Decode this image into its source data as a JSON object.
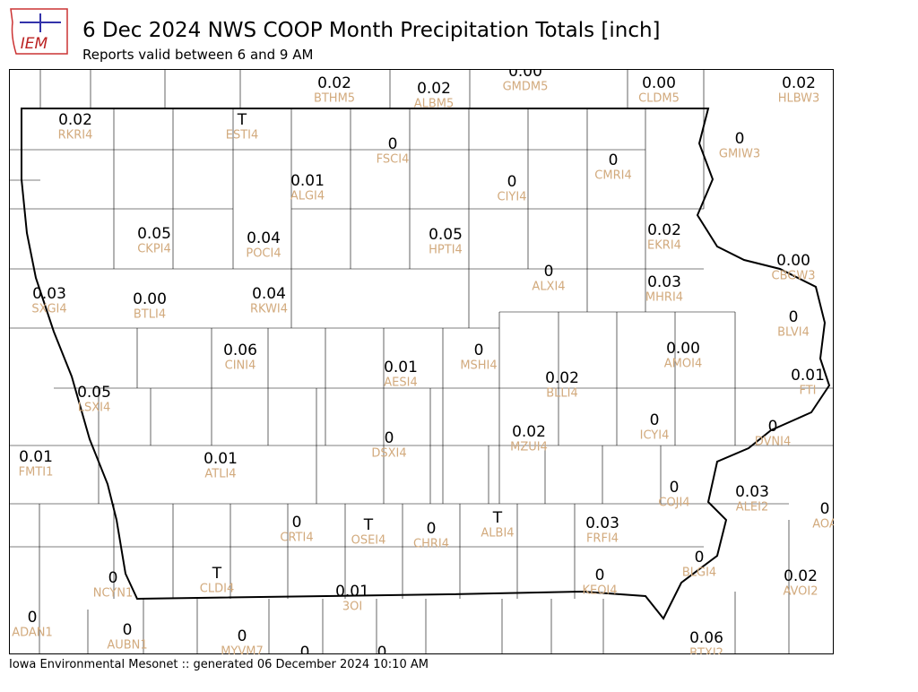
{
  "logo": "IEM",
  "header": {
    "title": "6 Dec 2024 NWS COOP Month Precipitation Totals [inch]",
    "subtitle": "Reports valid between 6 and 9 AM"
  },
  "footer": "Iowa Environmental Mesonet :: generated 06 December 2024 10:10 AM",
  "stations": [
    {
      "value": "0.02",
      "id": "BTHM5"
    },
    {
      "value": "0.02",
      "id": "ALBM5"
    },
    {
      "value": "0.00",
      "id": "GMDM5"
    },
    {
      "value": "0.00",
      "id": "CLDM5"
    },
    {
      "value": "0.02",
      "id": "HLBW3"
    },
    {
      "value": "0.02",
      "id": "RKRI4"
    },
    {
      "value": "T",
      "id": "ESTI4"
    },
    {
      "value": "0",
      "id": "FSCI4"
    },
    {
      "value": "0",
      "id": "GMIW3"
    },
    {
      "value": "0",
      "id": "CMRI4"
    },
    {
      "value": "0.01",
      "id": "ALGI4"
    },
    {
      "value": "0",
      "id": "CIYI4"
    },
    {
      "value": "0.05",
      "id": "CKPI4"
    },
    {
      "value": "0.04",
      "id": "POCI4"
    },
    {
      "value": "0.05",
      "id": "HPTI4"
    },
    {
      "value": "0.02",
      "id": "EKRI4"
    },
    {
      "value": "0.00",
      "id": "CBGW3"
    },
    {
      "value": "0",
      "id": "ALXI4"
    },
    {
      "value": "0.03",
      "id": "MHRI4"
    },
    {
      "value": "0.03",
      "id": "SXGI4"
    },
    {
      "value": "0.00",
      "id": "BTLI4"
    },
    {
      "value": "0.04",
      "id": "RKWI4"
    },
    {
      "value": "0",
      "id": "BLVI4"
    },
    {
      "value": "0.06",
      "id": "CINI4"
    },
    {
      "value": "0",
      "id": "MSHI4"
    },
    {
      "value": "0.00",
      "id": "AMOI4"
    },
    {
      "value": "0.01",
      "id": "AESI4"
    },
    {
      "value": "0.01",
      "id": "FTI"
    },
    {
      "value": "0.02",
      "id": "BLLI4"
    },
    {
      "value": "0.05",
      "id": "LSXI4"
    },
    {
      "value": "0",
      "id": "ICYI4"
    },
    {
      "value": "0",
      "id": "DVNI4"
    },
    {
      "value": "0.02",
      "id": "MZUI4"
    },
    {
      "value": "0",
      "id": "DSXI4"
    },
    {
      "value": "0.01",
      "id": "FMTI1"
    },
    {
      "value": "0.01",
      "id": "ATLI4"
    },
    {
      "value": "0",
      "id": "COJI4"
    },
    {
      "value": "0.03",
      "id": "ALEI2"
    },
    {
      "value": "0",
      "id": "AOA"
    },
    {
      "value": "0",
      "id": "CRTI4"
    },
    {
      "value": "T",
      "id": "OSEI4"
    },
    {
      "value": "0",
      "id": "CHRI4"
    },
    {
      "value": "T",
      "id": "ALBI4"
    },
    {
      "value": "0.03",
      "id": "FRFI4"
    },
    {
      "value": "0",
      "id": "BLGI4"
    },
    {
      "value": "T",
      "id": "CLDI4"
    },
    {
      "value": "0",
      "id": "NCYN1"
    },
    {
      "value": "0",
      "id": "KEOI4"
    },
    {
      "value": "0.02",
      "id": "AVOI2"
    },
    {
      "value": "0.01",
      "id": "3OI"
    },
    {
      "value": "0",
      "id": "ADAN1"
    },
    {
      "value": "0",
      "id": "AUBN1"
    },
    {
      "value": "0",
      "id": "MYVM7"
    },
    {
      "value": "0.06",
      "id": "BTXI2"
    },
    {
      "value": "0"
    },
    {
      "value": "0"
    }
  ]
}
